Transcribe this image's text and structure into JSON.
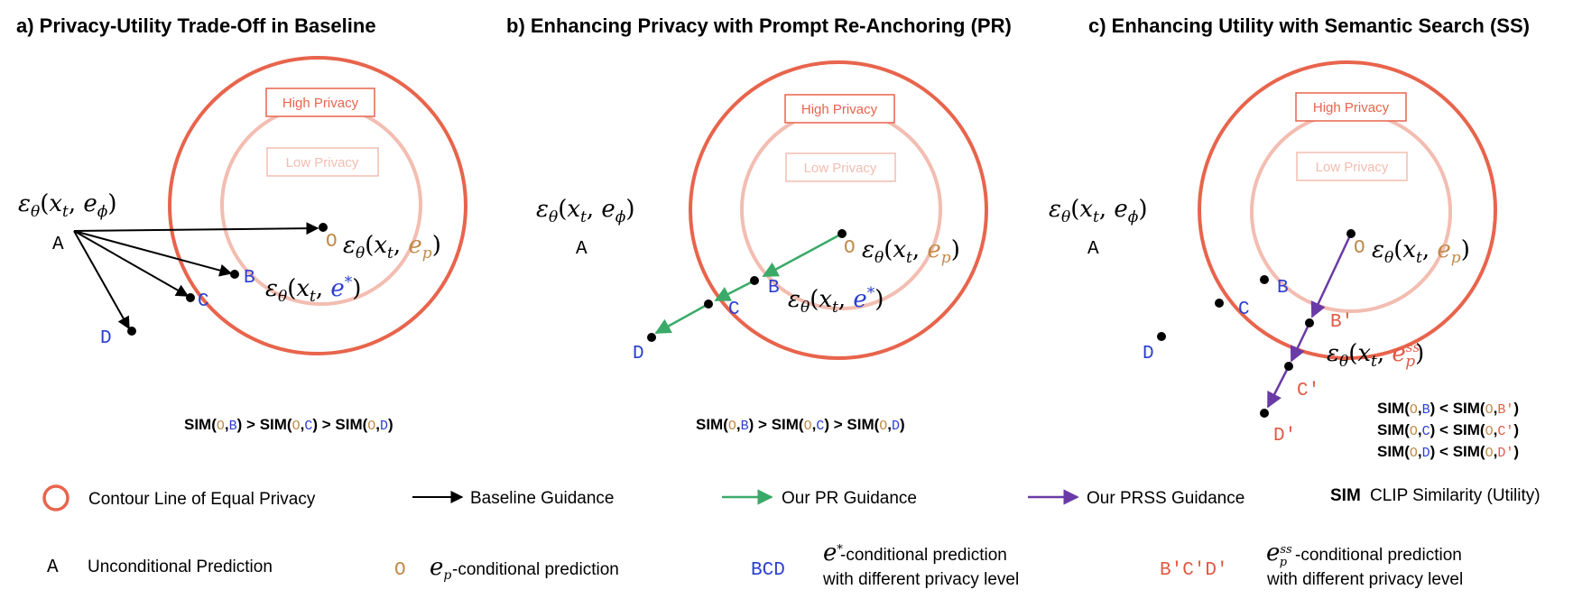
{
  "colors": {
    "outer_circle": "#e8644c",
    "inner_circle": "#f3bdb1",
    "high_privacy_box": "#e8644c",
    "low_privacy_box": "#f3bdb1",
    "baseline_arrow": "#000000",
    "pr_arrow": "#3aaa68",
    "prss_arrow": "#6a3aa6",
    "point_O": "#c08a4a",
    "point_BCD": "#2a3fd0",
    "point_prime": "#e05a45"
  },
  "panels": [
    {
      "title": "a) Privacy-Utility Trade-Off in Baseline",
      "high_privacy": "High Privacy",
      "low_privacy": "Low Privacy",
      "sim_lines": [
        {
          "parts": [
            {
              "t": "SIM(",
              "c": "k"
            },
            {
              "t": "O",
              "c": "o",
              "m": 1
            },
            {
              "t": ",",
              "c": "k"
            },
            {
              "t": "B",
              "c": "b",
              "m": 1
            },
            {
              "t": ") > SIM(",
              "c": "k"
            },
            {
              "t": "O",
              "c": "o",
              "m": 1
            },
            {
              "t": ",",
              "c": "k"
            },
            {
              "t": "C",
              "c": "b",
              "m": 1
            },
            {
              "t": ") > SIM(",
              "c": "k"
            },
            {
              "t": "O",
              "c": "o",
              "m": 1
            },
            {
              "t": ",",
              "c": "k"
            },
            {
              "t": "D",
              "c": "b",
              "m": 1
            },
            {
              "t": ")",
              "c": "k"
            }
          ]
        }
      ]
    },
    {
      "title": "b) Enhancing Privacy with Prompt Re-Anchoring (PR)",
      "high_privacy": "High Privacy",
      "low_privacy": "Low Privacy",
      "sim_lines": [
        {
          "parts": [
            {
              "t": "SIM(",
              "c": "k"
            },
            {
              "t": "O",
              "c": "o",
              "m": 1
            },
            {
              "t": ",",
              "c": "k"
            },
            {
              "t": "B",
              "c": "b",
              "m": 1
            },
            {
              "t": ") > SIM(",
              "c": "k"
            },
            {
              "t": "O",
              "c": "o",
              "m": 1
            },
            {
              "t": ",",
              "c": "k"
            },
            {
              "t": "C",
              "c": "b",
              "m": 1
            },
            {
              "t": ") > SIM(",
              "c": "k"
            },
            {
              "t": "O",
              "c": "o",
              "m": 1
            },
            {
              "t": ",",
              "c": "k"
            },
            {
              "t": "D",
              "c": "b",
              "m": 1
            },
            {
              "t": ")",
              "c": "k"
            }
          ]
        }
      ]
    },
    {
      "title": "c) Enhancing Utility with Semantic Search (SS)",
      "high_privacy": "High Privacy",
      "low_privacy": "Low Privacy",
      "sim_lines": [
        {
          "parts": [
            {
              "t": "SIM(",
              "c": "k"
            },
            {
              "t": "O",
              "c": "o",
              "m": 1
            },
            {
              "t": ",",
              "c": "k"
            },
            {
              "t": "B",
              "c": "b",
              "m": 1
            },
            {
              "t": ") < SIM(",
              "c": "k"
            },
            {
              "t": "O",
              "c": "o",
              "m": 1
            },
            {
              "t": ",",
              "c": "k"
            },
            {
              "t": "B′",
              "c": "r",
              "m": 1
            },
            {
              "t": ")",
              "c": "k"
            }
          ]
        },
        {
          "parts": [
            {
              "t": "SIM(",
              "c": "k"
            },
            {
              "t": "O",
              "c": "o",
              "m": 1
            },
            {
              "t": ",",
              "c": "k"
            },
            {
              "t": "C",
              "c": "b",
              "m": 1
            },
            {
              "t": ") < SIM(",
              "c": "k"
            },
            {
              "t": "O",
              "c": "o",
              "m": 1
            },
            {
              "t": ",",
              "c": "k"
            },
            {
              "t": "C′",
              "c": "r",
              "m": 1
            },
            {
              "t": ")",
              "c": "k"
            }
          ]
        },
        {
          "parts": [
            {
              "t": "SIM(",
              "c": "k"
            },
            {
              "t": "O",
              "c": "o",
              "m": 1
            },
            {
              "t": ",",
              "c": "k"
            },
            {
              "t": "D",
              "c": "b",
              "m": 1
            },
            {
              "t": ") < SIM(",
              "c": "k"
            },
            {
              "t": "O",
              "c": "o",
              "m": 1
            },
            {
              "t": ",",
              "c": "k"
            },
            {
              "t": "D′",
              "c": "r",
              "m": 1
            },
            {
              "t": ")",
              "c": "k"
            }
          ]
        }
      ]
    }
  ],
  "points": {
    "A": "A",
    "O": "O",
    "B": "B",
    "C": "C",
    "D": "D",
    "B_prime": "B′",
    "C_prime": "C′",
    "D_prime": "D′"
  },
  "math": {
    "eps": "ε",
    "theta": "θ",
    "x": "x",
    "t": "t",
    "e": "e",
    "phi": "ϕ",
    "p": "p",
    "star": "*",
    "ss": "ss"
  },
  "legend": {
    "contour": "Contour Line of Equal Privacy",
    "baseline": "Baseline Guidance",
    "pr": "Our PR Guidance",
    "prss": "Our PRSS Guidance",
    "sim_key": "SIM",
    "sim_desc": "CLIP Similarity (Utility)",
    "uncond_symbol": "A",
    "uncond_desc": "Unconditional Prediction",
    "ep_symbol": "O",
    "ep_desc": "-conditional prediction",
    "bcd_symbol": "BCD",
    "estar_desc_1": "-conditional prediction",
    "estar_desc_2": "with different privacy level",
    "prime_symbol": "B′C′D′",
    "ess_desc_1": "-conditional prediction",
    "ess_desc_2": "with different privacy level"
  }
}
